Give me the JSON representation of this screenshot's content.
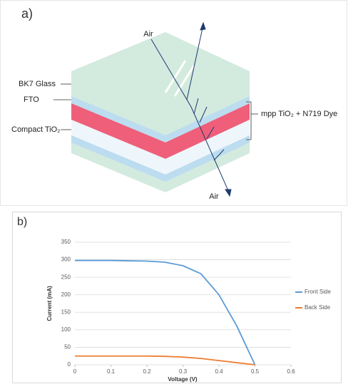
{
  "diagram": {
    "label": "a)",
    "air_top": "Air",
    "bk7": "BK7 Glass",
    "fto": "FTO",
    "compact": "Compact TiO₂",
    "dye": "mpp TiO₂ + N719 Dye",
    "air_bottom": "Air"
  },
  "chart_data": {
    "type": "line",
    "label": "b)",
    "x_label": "Voltage (V)",
    "y_label": "Current (mA)",
    "x": [
      0,
      0.05,
      0.1,
      0.15,
      0.2,
      0.25,
      0.3,
      0.35,
      0.4,
      0.45,
      0.5
    ],
    "series": [
      {
        "name": "Front Side",
        "color": "#5b9bd5",
        "values": [
          298,
          298,
          298,
          297,
          296,
          293,
          283,
          260,
          200,
          110,
          0
        ]
      },
      {
        "name": "Back Side",
        "color": "#ed7d31",
        "values": [
          25,
          25,
          25,
          25,
          25,
          24,
          22,
          18,
          12,
          6,
          0
        ]
      }
    ],
    "xlim": [
      0,
      0.6
    ],
    "xticks": [
      0,
      0.1,
      0.2,
      0.3,
      0.4,
      0.5,
      0.6
    ],
    "ylim": [
      0,
      350
    ],
    "yticks": [
      0,
      50,
      100,
      150,
      200,
      250,
      300,
      350
    ],
    "grid": true,
    "legend": "right"
  }
}
